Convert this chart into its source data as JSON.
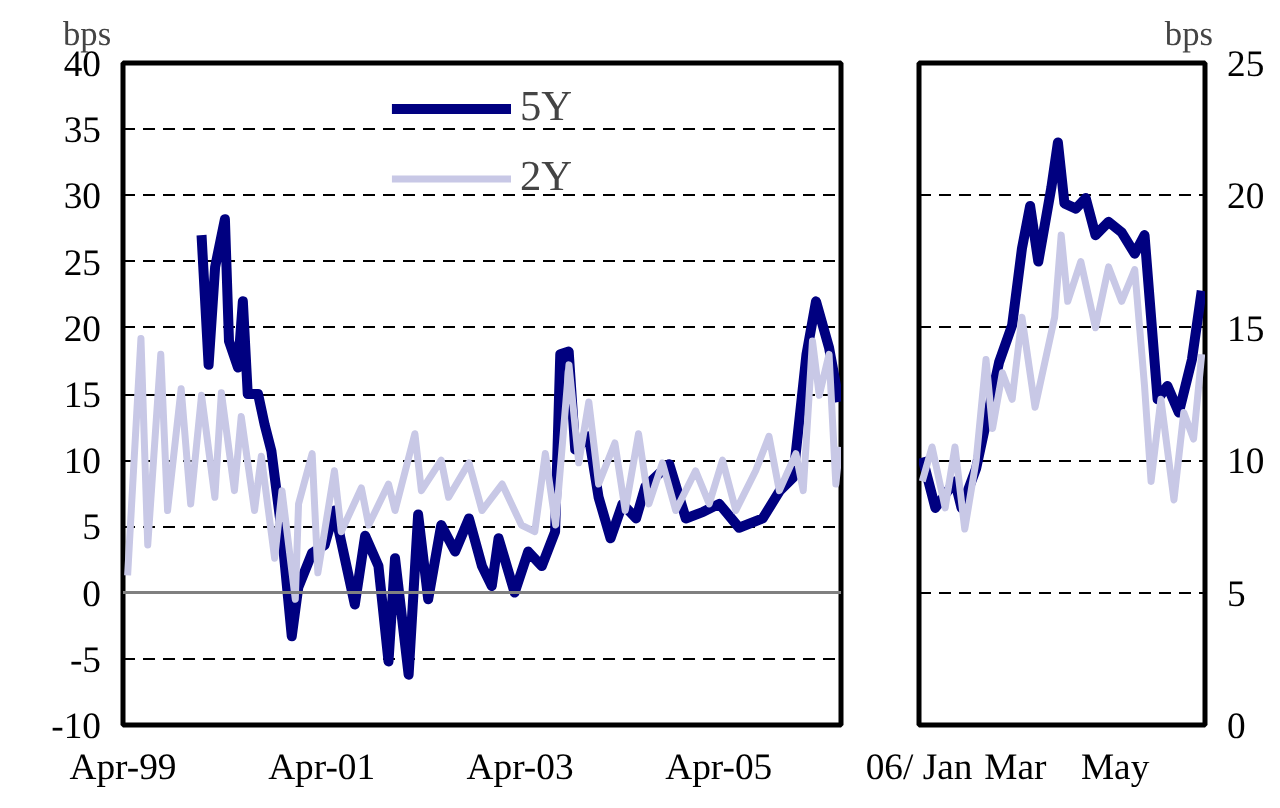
{
  "chart_data": [
    {
      "type": "line",
      "ylabel": "bps",
      "xlim": [
        "1999-04-01",
        "2006-06-25"
      ],
      "ylim": [
        -10,
        40
      ],
      "yticks": [
        -10,
        -5,
        0,
        5,
        10,
        15,
        20,
        25,
        30,
        35,
        40
      ],
      "xticks": [
        {
          "value": "1999-04-01",
          "label": "Apr-99"
        },
        {
          "value": "2001-04-01",
          "label": "Apr-01"
        },
        {
          "value": "2003-04-01",
          "label": "Apr-03"
        },
        {
          "value": "2005-04-01",
          "label": "Apr-05"
        }
      ],
      "grid": "y",
      "legend": "top",
      "line_style": "solid",
      "ref_lines": [
        {
          "axis": "y",
          "value": 0,
          "color": "#808080",
          "line_style": "solid"
        }
      ],
      "series": [
        {
          "name": "5Y",
          "color": "#000080",
          "x": [
            "2000-01-15",
            "2000-02-10",
            "2000-03-05",
            "2000-04-10",
            "2000-04-25",
            "2000-05-28",
            "2000-06-15",
            "2000-07-03",
            "2000-08-10",
            "2000-09-03",
            "2000-09-28",
            "2000-11-05",
            "2000-12-12",
            "2001-01-05",
            "2001-02-25",
            "2001-04-12",
            "2001-05-18",
            "2001-06-25",
            "2001-08-01",
            "2001-09-08",
            "2001-10-27",
            "2001-12-03",
            "2001-12-27",
            "2002-02-15",
            "2002-03-22",
            "2002-04-28",
            "2002-06-15",
            "2002-08-05",
            "2002-09-25",
            "2002-11-12",
            "2002-12-18",
            "2003-01-12",
            "2003-03-12",
            "2003-05-01",
            "2003-06-20",
            "2003-08-08",
            "2003-08-27",
            "2003-09-27",
            "2003-10-21",
            "2003-12-10",
            "2004-01-15",
            "2004-02-28",
            "2004-04-12",
            "2004-06-01",
            "2004-07-05",
            "2004-10-01",
            "2004-12-01",
            "2005-02-03",
            "2005-04-03",
            "2005-06-15",
            "2005-09-10",
            "2005-11-12",
            "2005-12-31",
            "2006-02-18",
            "2006-03-25",
            "2006-05-12",
            "2006-06-18"
          ],
          "values": [
            27,
            17.2,
            24.6,
            28.2,
            19,
            17,
            22,
            15,
            15,
            12.7,
            10.7,
            4.6,
            -3.3,
            0.4,
            3,
            3.6,
            6.2,
            2.6,
            -0.9,
            4.3,
            2,
            -5.2,
            2.6,
            -6.2,
            5.9,
            -0.5,
            5.1,
            3.1,
            5.6,
            2,
            0.5,
            4.1,
            0,
            3.1,
            2,
            4.6,
            18,
            18.2,
            10.8,
            11.8,
            7.2,
            4.1,
            6.7,
            5.6,
            8,
            9.7,
            5.6,
            6.1,
            6.7,
            4.9,
            5.6,
            7.7,
            8.7,
            18,
            22,
            18.5,
            14.4
          ]
        },
        {
          "name": "2Y",
          "color": "#c8c8e6",
          "x": [
            "1999-04-18",
            "1999-06-06",
            "1999-07-01",
            "1999-08-18",
            "1999-09-12",
            "1999-11-01",
            "1999-12-06",
            "2000-01-15",
            "2000-03-04",
            "2000-03-28",
            "2000-05-15",
            "2000-06-09",
            "2000-07-28",
            "2000-08-22",
            "2000-10-10",
            "2000-11-06",
            "2000-12-25",
            "2001-01-06",
            "2001-02-25",
            "2001-03-18",
            "2001-05-18",
            "2001-06-12",
            "2001-08-25",
            "2001-09-21",
            "2001-12-03",
            "2001-12-27",
            "2002-03-10",
            "2002-04-03",
            "2002-06-15",
            "2002-07-12",
            "2002-09-25",
            "2002-11-12",
            "2003-01-25",
            "2003-04-06",
            "2003-05-25",
            "2003-07-03",
            "2003-08-10",
            "2003-09-28",
            "2003-11-03",
            "2003-12-10",
            "2004-01-15",
            "2004-03-15",
            "2004-04-22",
            "2004-06-10",
            "2004-07-18",
            "2004-09-06",
            "2004-10-25",
            "2005-01-06",
            "2005-02-25",
            "2005-04-15",
            "2005-06-03",
            "2005-08-15",
            "2005-10-03",
            "2005-11-10",
            "2006-01-10",
            "2006-02-06",
            "2006-03-12",
            "2006-04-06",
            "2006-05-12",
            "2006-06-06",
            "2006-06-20"
          ],
          "values": [
            1.3,
            19.2,
            3.6,
            18,
            6.2,
            15.4,
            6.7,
            14.9,
            7.2,
            15.1,
            7.7,
            13.3,
            6.2,
            10.3,
            2.6,
            7.7,
            -0.5,
            6.7,
            10.5,
            1.5,
            9.2,
            4.6,
            7.9,
            5.1,
            8.2,
            6.2,
            12,
            7.7,
            10,
            7.2,
            9.8,
            6.2,
            8.2,
            5.1,
            4.6,
            10.5,
            5.1,
            17.2,
            9.8,
            14.4,
            8.2,
            11.3,
            6.2,
            12,
            6.7,
            9.8,
            6.2,
            9.2,
            6.7,
            10,
            6.2,
            9.2,
            11.8,
            7.7,
            10.5,
            7.7,
            19,
            14.9,
            18,
            8.2,
            11
          ]
        }
      ]
    },
    {
      "type": "line",
      "ylabel": "bps",
      "xlim": [
        "2006-01-01",
        "2006-06-25"
      ],
      "ylim": [
        0,
        25
      ],
      "yticks": [
        0,
        5,
        10,
        15,
        20,
        25
      ],
      "xticks": [
        {
          "value": "2006-01-01",
          "label": "06/ Jan"
        },
        {
          "value": "2006-03-01",
          "label": "Mar"
        },
        {
          "value": "2006-05-01",
          "label": "May"
        }
      ],
      "grid": "y",
      "legend": false,
      "line_style": "solid",
      "series": [
        {
          "color": "#000080",
          "x": [
            "2006-01-03",
            "2006-01-11",
            "2006-01-17",
            "2006-01-23",
            "2006-01-27",
            "2006-02-05",
            "2006-02-19",
            "2006-02-27",
            "2006-03-05",
            "2006-03-10",
            "2006-03-15",
            "2006-03-23",
            "2006-03-27",
            "2006-03-31",
            "2006-04-07",
            "2006-04-13",
            "2006-04-19",
            "2006-04-27",
            "2006-05-05",
            "2006-05-13",
            "2006-05-19",
            "2006-05-27",
            "2006-06-02",
            "2006-06-09",
            "2006-06-17",
            "2006-06-23"
          ],
          "values": [
            10.1,
            8.2,
            8.7,
            9.2,
            8.2,
            9.7,
            13.7,
            15.1,
            18,
            19.6,
            17.5,
            20.3,
            22,
            19.7,
            19.5,
            19.9,
            18.5,
            19,
            18.6,
            17.8,
            18.5,
            12.3,
            12.8,
            11.8,
            13.8,
            16.4
          ]
        },
        {
          "color": "#c8c8e6",
          "x": [
            "2006-01-03",
            "2006-01-09",
            "2006-01-17",
            "2006-01-23",
            "2006-01-29",
            "2006-02-05",
            "2006-02-11",
            "2006-02-15",
            "2006-02-21",
            "2006-02-27",
            "2006-03-05",
            "2006-03-13",
            "2006-03-25",
            "2006-03-29",
            "2006-04-02",
            "2006-04-10",
            "2006-04-19",
            "2006-04-27",
            "2006-05-05",
            "2006-05-13",
            "2006-05-19",
            "2006-05-23",
            "2006-05-29",
            "2006-06-06",
            "2006-06-12",
            "2006-06-18",
            "2006-06-23"
          ],
          "values": [
            9.2,
            10.5,
            8.2,
            10.5,
            7.4,
            10,
            13.8,
            11.2,
            13.3,
            12.3,
            15.4,
            12,
            15.4,
            18.5,
            16,
            17.5,
            15,
            17.3,
            16,
            17.2,
            12.8,
            9.2,
            12.3,
            8.5,
            11.8,
            10.8,
            14
          ]
        }
      ]
    }
  ]
}
